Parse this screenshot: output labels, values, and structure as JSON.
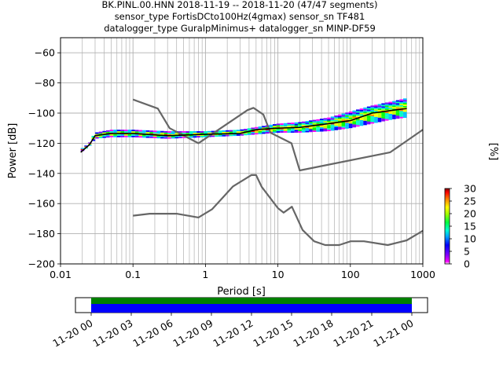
{
  "title_lines": [
    "BK.PINL.00.HNN   2018-11-19 -- 2018-11-20  (47/47 segments)",
    "sensor_type FortisDCto100Hz(4gmax) sensor_sn TF481",
    "datalogger_type GuralpMinimus+ datalogger_sn MINP-DF59"
  ],
  "chart_data": [
    {
      "type": "heatmap",
      "xlabel": "Period [s]",
      "ylabel": "Power [dB]",
      "x_scale": "log",
      "xlim": [
        0.01,
        1000
      ],
      "ylim": [
        -200,
        -50
      ],
      "x_ticks": [
        {
          "value": 0.01,
          "label": "0.01"
        },
        {
          "value": 0.1,
          "label": "0.1"
        },
        {
          "value": 1,
          "label": "1"
        },
        {
          "value": 10,
          "label": "10"
        },
        {
          "value": 100,
          "label": "100"
        },
        {
          "value": 1000,
          "label": "1000"
        }
      ],
      "y_ticks": [
        {
          "value": -60,
          "label": "−60"
        },
        {
          "value": -80,
          "label": "−80"
        },
        {
          "value": -100,
          "label": "−100"
        },
        {
          "value": -120,
          "label": "−120"
        },
        {
          "value": -140,
          "label": "−140"
        },
        {
          "value": -160,
          "label": "−160"
        },
        {
          "value": -180,
          "label": "−180"
        },
        {
          "value": -200,
          "label": "−200"
        }
      ],
      "grid": true,
      "colorbar": {
        "label": "[%]",
        "range": [
          0,
          30
        ],
        "ticks": [
          {
            "value": 0,
            "label": "0"
          },
          {
            "value": 5,
            "label": "5"
          },
          {
            "value": 10,
            "label": "10"
          },
          {
            "value": 15,
            "label": "15"
          },
          {
            "value": 20,
            "label": "20"
          },
          {
            "value": 25,
            "label": "25"
          },
          {
            "value": 30,
            "label": "30"
          }
        ]
      },
      "noise_model_high": [
        [
          0.1,
          -91
        ],
        [
          0.22,
          -97
        ],
        [
          0.32,
          -110
        ],
        [
          0.8,
          -120
        ],
        [
          3.8,
          -98
        ],
        [
          4.6,
          -96.5
        ],
        [
          6.3,
          -101
        ],
        [
          7.9,
          -113
        ],
        [
          15.4,
          -120
        ],
        [
          20,
          -138
        ],
        [
          354.8,
          -126
        ],
        [
          1000,
          -111
        ]
      ],
      "noise_model_low": [
        [
          0.1,
          -168
        ],
        [
          0.17,
          -166.7
        ],
        [
          0.4,
          -166.7
        ],
        [
          0.8,
          -169.2
        ],
        [
          1.24,
          -163.7
        ],
        [
          2.4,
          -148.6
        ],
        [
          4.3,
          -141.1
        ],
        [
          5.0,
          -141.1
        ],
        [
          6.0,
          -149
        ],
        [
          10,
          -163
        ],
        [
          12,
          -166
        ],
        [
          15.6,
          -162.1
        ],
        [
          21.9,
          -177.5
        ],
        [
          31.6,
          -185
        ],
        [
          45,
          -187.5
        ],
        [
          70,
          -187.5
        ],
        [
          101,
          -185
        ],
        [
          154,
          -185
        ],
        [
          328,
          -187.5
        ],
        [
          600,
          -184.4
        ],
        [
          1000,
          -178
        ]
      ],
      "mode_line": [
        [
          0.019,
          -126
        ],
        [
          0.025,
          -121
        ],
        [
          0.03,
          -115
        ],
        [
          0.05,
          -113.5
        ],
        [
          0.1,
          -113.5
        ],
        [
          0.3,
          -115
        ],
        [
          1,
          -114
        ],
        [
          3,
          -113.5
        ],
        [
          5,
          -111
        ],
        [
          10,
          -110
        ],
        [
          20,
          -109.5
        ],
        [
          50,
          -107
        ],
        [
          100,
          -105
        ],
        [
          200,
          -100
        ],
        [
          400,
          -98
        ],
        [
          600,
          -97
        ]
      ],
      "distribution_band": [
        [
          0.019,
          -126,
          -124
        ],
        [
          0.025,
          -122,
          -120
        ],
        [
          0.03,
          -117,
          -113
        ],
        [
          0.05,
          -116,
          -111
        ],
        [
          0.1,
          -116,
          -111
        ],
        [
          0.3,
          -117,
          -112
        ],
        [
          1,
          -116,
          -112
        ],
        [
          3,
          -115,
          -111
        ],
        [
          10,
          -113,
          -107
        ],
        [
          20,
          -113,
          -106
        ],
        [
          50,
          -112,
          -103
        ],
        [
          100,
          -110,
          -99
        ],
        [
          200,
          -107,
          -95
        ],
        [
          400,
          -104,
          -92
        ],
        [
          600,
          -103,
          -90
        ]
      ]
    },
    {
      "type": "timeline",
      "tick_labels": [
        "11-20 00",
        "11-20 03",
        "11-20 06",
        "11-20 09",
        "11-20 12",
        "11-20 15",
        "11-20 18",
        "11-20 21",
        "11-21 00"
      ],
      "coverage_start": 0.0,
      "coverage_end": 1.0,
      "colors": {
        "coverage": "#0000ff",
        "gaps_ok": "#008000"
      }
    }
  ],
  "colors": {
    "noise_model": "#666666",
    "mode_line": "#000000",
    "colormap": [
      "#ff00ff",
      "#8000ff",
      "#0000ff",
      "#00c0ff",
      "#00ffc0",
      "#00ff00",
      "#c0ff00",
      "#ffff00",
      "#ff8000",
      "#ff0000",
      "#800000"
    ]
  }
}
